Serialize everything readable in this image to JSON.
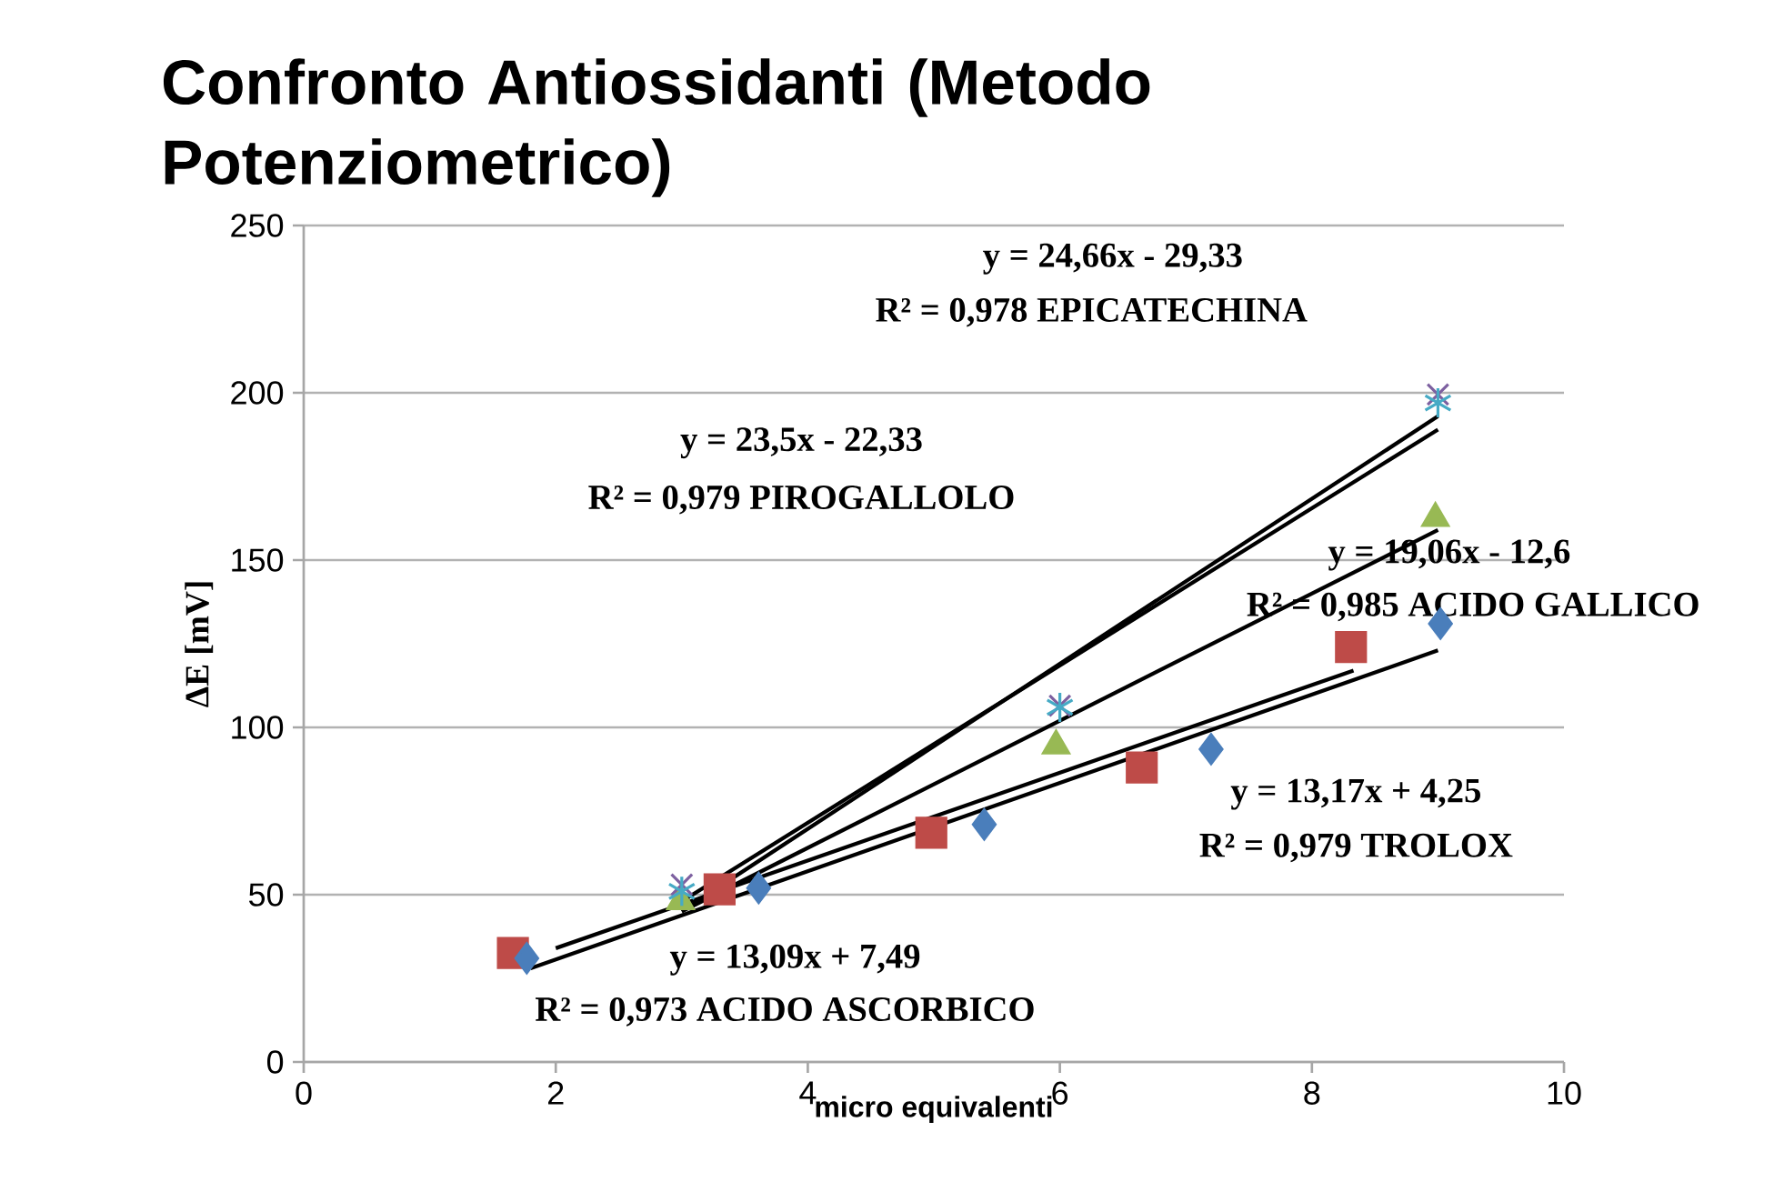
{
  "chart_data": {
    "type": "scatter",
    "title": "Confronto Antiossidanti  (Metodo Potenziometrico)",
    "xlabel": "micro equivalenti",
    "ylabel": "ΔE [mV]",
    "xlim": [
      0,
      10
    ],
    "ylim": [
      0,
      250
    ],
    "xticks": [
      0,
      2,
      4,
      6,
      8,
      10
    ],
    "yticks": [
      0,
      50,
      100,
      150,
      200,
      250
    ],
    "grid": "y",
    "series": [
      {
        "color": "#4a7ebb",
        "marker": "diamond",
        "x": [
          1.77,
          3.61,
          5.4,
          7.2,
          9.02
        ],
        "values": [
          31,
          52,
          71,
          93.5,
          131
        ]
      },
      {
        "color": "#be4b48",
        "marker": "square",
        "x": [
          1.66,
          3.3,
          4.98,
          6.65,
          8.31
        ],
        "values": [
          32.6,
          51.6,
          68.5,
          88,
          124
        ]
      },
      {
        "color": "#98b954",
        "marker": "triangle",
        "x": [
          2.99,
          5.97,
          8.98
        ],
        "values": [
          48,
          94.5,
          162.5
        ]
      },
      {
        "color": "#7d60a0",
        "marker": "cross",
        "x": [
          3,
          6,
          9
        ],
        "values": [
          53,
          106.5,
          199.5
        ]
      },
      {
        "color": "#46aac5",
        "marker": "cross",
        "x": [
          3,
          6,
          9
        ],
        "values": [
          51,
          106,
          197
        ]
      },
      {
        "type": "line",
        "color": "#000000",
        "x": [
          1.8,
          9
        ],
        "values": [
          28,
          123
        ]
      },
      {
        "type": "line",
        "color": "#000000",
        "x": [
          2,
          8.33
        ],
        "values": [
          34,
          117
        ]
      },
      {
        "type": "line",
        "color": "#000000",
        "x": [
          3,
          9
        ],
        "values": [
          45,
          159
        ]
      },
      {
        "type": "line",
        "color": "#000000",
        "x": [
          3,
          9
        ],
        "values": [
          48,
          189
        ]
      },
      {
        "type": "line",
        "color": "#000000",
        "x": [
          3,
          9
        ],
        "values": [
          45,
          193
        ]
      }
    ],
    "annotations": [
      "y = 24,66x - 29,33",
      "R² = 0,978 EPICATECHINA",
      "y = 23,5x - 22,33",
      "R² = 0,979 PIROGALLOLO",
      "y = 19,06x - 12,6",
      "R² = 0,985 ACIDO GALLICO",
      "y = 13,17x + 4,25",
      "R² = 0,979 TROLOX",
      "y = 13,09x + 7,49",
      "R² = 0,973 ACIDO ASCORBICO"
    ]
  }
}
